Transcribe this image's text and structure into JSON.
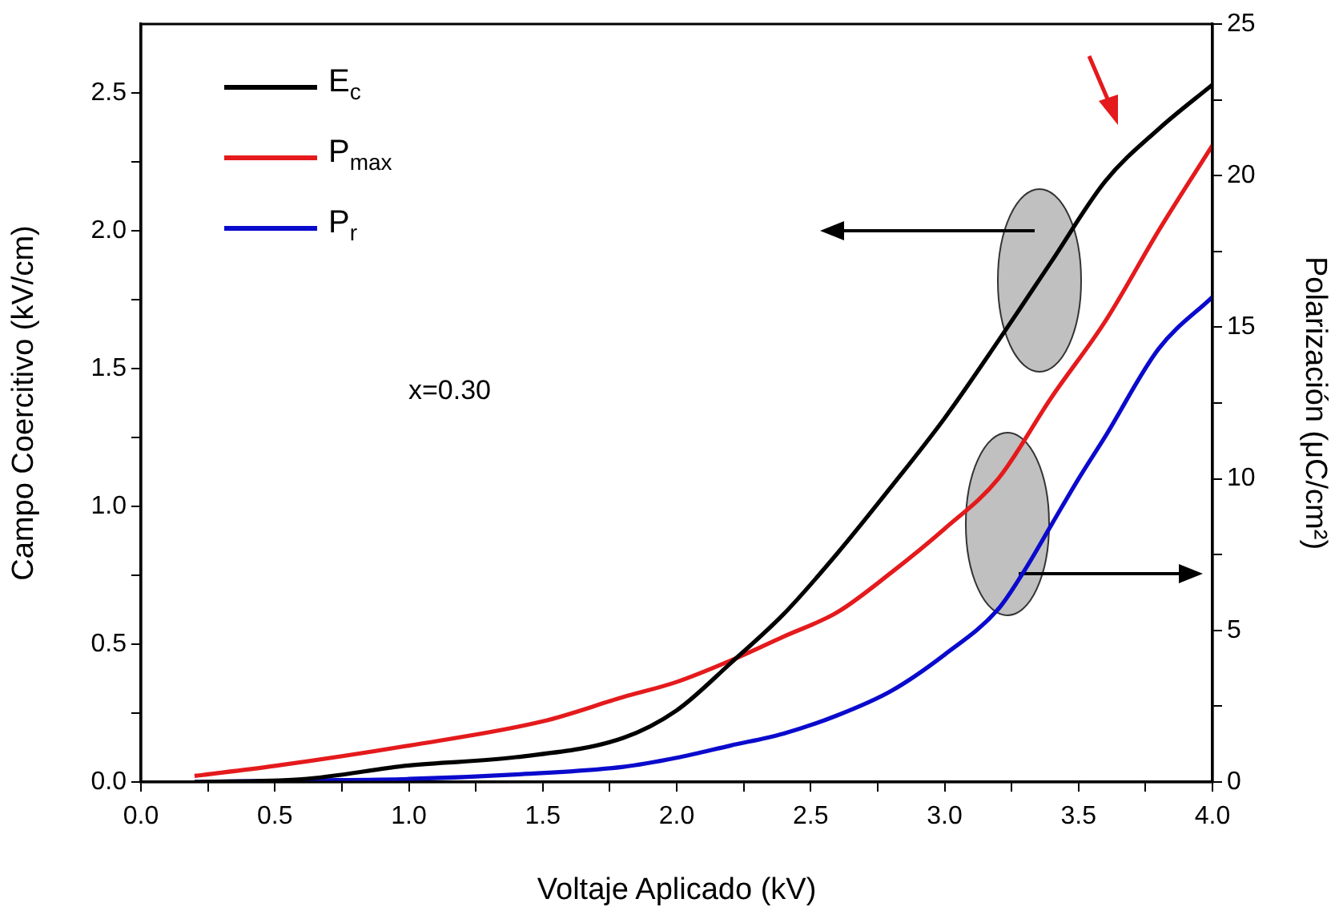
{
  "chart_data": {
    "type": "line",
    "xlabel": "Voltaje Aplicado (kV)",
    "ylabel": "Campo Coercitivo (kV/cm)",
    "y2label": "Polarización (μC/cm²)",
    "annotations": [
      "x=0.30"
    ],
    "series": [
      {
        "name": "E$_{c}$",
        "color": "#000000",
        "axis": "y",
        "x": [
          0.2,
          0.6,
          1.0,
          1.4,
          1.8,
          2.0,
          2.2,
          2.4,
          2.6,
          2.8,
          3.0,
          3.2,
          3.4,
          3.6,
          3.8,
          4.0
        ],
        "values": [
          0.0,
          0.01,
          0.06,
          0.09,
          0.16,
          0.26,
          0.43,
          0.61,
          0.83,
          1.07,
          1.32,
          1.6,
          1.89,
          2.18,
          2.37,
          2.53
        ]
      },
      {
        "name": "P$_{max}$",
        "color": "#e41a1c",
        "axis": "y2",
        "x": [
          0.2,
          0.5,
          1.0,
          1.5,
          1.8,
          2.0,
          2.2,
          2.4,
          2.6,
          2.8,
          3.0,
          3.2,
          3.4,
          3.6,
          3.8,
          4.0
        ],
        "values": [
          0.2,
          0.53,
          1.2,
          2.0,
          2.8,
          3.3,
          4.0,
          4.8,
          5.6,
          6.9,
          8.35,
          10.0,
          12.7,
          15.2,
          18.2,
          21.0
        ]
      },
      {
        "name": "P$_{r}$",
        "color": "#0a0acd",
        "axis": "y2",
        "x": [
          0.2,
          0.6,
          1.0,
          1.4,
          1.8,
          2.0,
          2.2,
          2.4,
          2.6,
          2.8,
          3.0,
          3.2,
          3.3,
          3.4,
          3.5,
          3.6,
          3.8,
          4.0
        ],
        "values": [
          0,
          0.05,
          0.1,
          0.25,
          0.5,
          0.8,
          1.2,
          1.6,
          2.2,
          3.0,
          4.2,
          5.7,
          7.0,
          8.5,
          10.0,
          11.4,
          14.3,
          16.0
        ]
      }
    ],
    "xlim": [
      0,
      4
    ],
    "xticks": [
      {
        "value": 0,
        "label": "0.0"
      },
      {
        "value": 0.25,
        "label": null
      },
      {
        "value": 0.5,
        "label": "0.5"
      },
      {
        "value": 0.75,
        "label": null
      },
      {
        "value": 1,
        "label": "1.0"
      },
      {
        "value": 1.25,
        "label": null
      },
      {
        "value": 1.5,
        "label": "1.5"
      },
      {
        "value": 1.75,
        "label": null
      },
      {
        "value": 2,
        "label": "2.0"
      },
      {
        "value": 2.25,
        "label": null
      },
      {
        "value": 2.5,
        "label": "2.5"
      },
      {
        "value": 2.75,
        "label": null
      },
      {
        "value": 3,
        "label": "3.0"
      },
      {
        "value": 3.25,
        "label": null
      },
      {
        "value": 3.5,
        "label": "3.5"
      },
      {
        "value": 3.75,
        "label": null
      },
      {
        "value": 4,
        "label": "4.0"
      }
    ],
    "ylim": [
      0,
      2.75
    ],
    "yticks": [
      {
        "value": 0,
        "label": "0.0"
      },
      {
        "value": 0.25,
        "label": null
      },
      {
        "value": 0.5,
        "label": "0.5"
      },
      {
        "value": 0.75,
        "label": null
      },
      {
        "value": 1,
        "label": "1.0"
      },
      {
        "value": 1.25,
        "label": null
      },
      {
        "value": 1.5,
        "label": "1.5"
      },
      {
        "value": 1.75,
        "label": null
      },
      {
        "value": 2,
        "label": "2.0"
      },
      {
        "value": 2.25,
        "label": null
      },
      {
        "value": 2.5,
        "label": "2.5"
      }
    ],
    "y2lim": [
      0,
      25
    ],
    "y2ticks": [
      0,
      {
        "value": 2.5,
        "label": null
      },
      5,
      {
        "value": 7.5,
        "label": null
      },
      10,
      {
        "value": 12.5,
        "label": null
      },
      15,
      {
        "value": 17.5,
        "label": null
      },
      20,
      {
        "value": 22.5,
        "label": null
      },
      25
    ],
    "grid": false,
    "legend": "top left",
    "marker": "none",
    "line_style": "solid"
  }
}
